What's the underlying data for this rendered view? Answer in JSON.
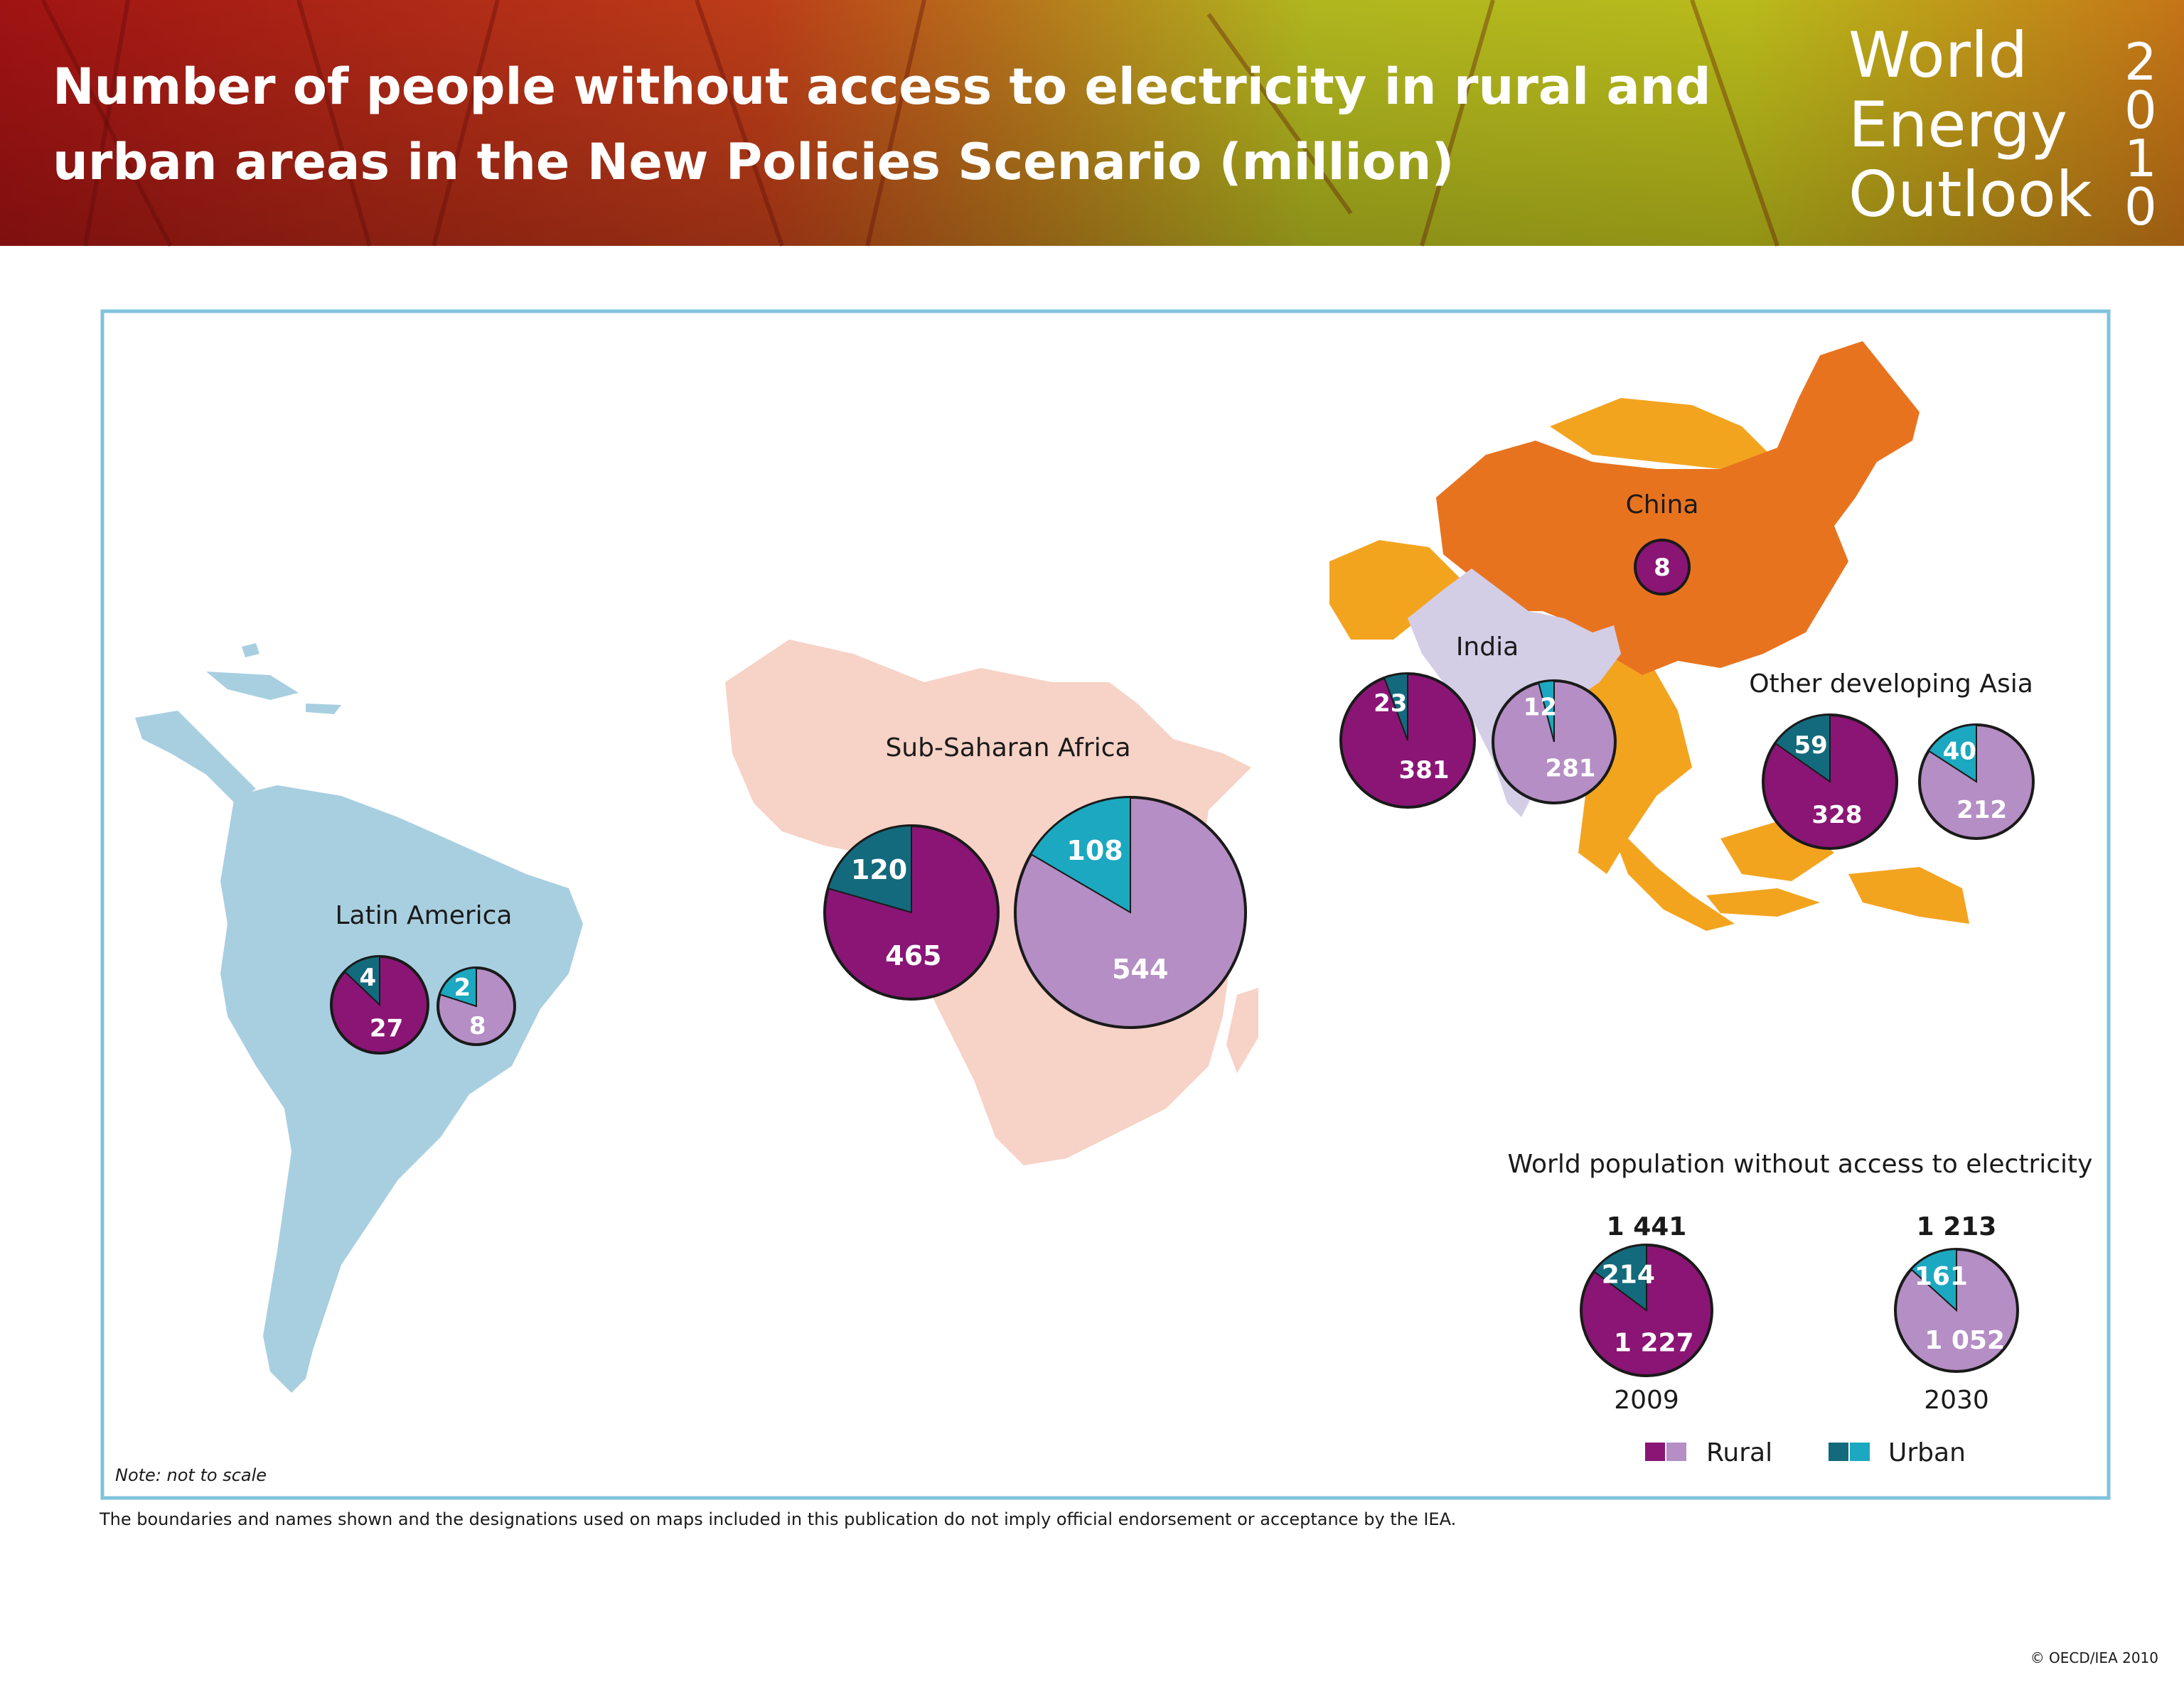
{
  "header": {
    "title_line1": "Number of people without access to electricity in rural and",
    "title_line2": "urban areas in the New Policies Scenario (million)",
    "logo_line1": "World",
    "logo_line2": "Energy",
    "logo_line3": "Outlook",
    "logo_year_digits": [
      "2",
      "0",
      "1",
      "0"
    ]
  },
  "colors": {
    "rural_2009": "#8a1575",
    "rural_2030": "#b48ec4",
    "urban_2009": "#136a7c",
    "urban_2030": "#1ca8c0",
    "latin_america": "#a8cfe0",
    "africa": "#f7d2c6",
    "china": "#e8731f",
    "india": "#d3cde6",
    "other_asia": "#f3a41f"
  },
  "regions": [
    {
      "id": "latin-america",
      "name": "Latin America",
      "pies": [
        {
          "year": "2009",
          "rural": 27,
          "urban": 4
        },
        {
          "year": "2030",
          "rural": 8,
          "urban": 2
        }
      ]
    },
    {
      "id": "sub-saharan-africa",
      "name": "Sub-Saharan Africa",
      "pies": [
        {
          "year": "2009",
          "rural": 465,
          "urban": 120
        },
        {
          "year": "2030",
          "rural": 544,
          "urban": 108
        }
      ]
    },
    {
      "id": "china",
      "name": "China",
      "pies": [
        {
          "year": "2009",
          "rural": 8,
          "urban": 0
        }
      ]
    },
    {
      "id": "india",
      "name": "India",
      "pies": [
        {
          "year": "2009",
          "rural": 381,
          "urban": 23
        },
        {
          "year": "2030",
          "rural": 281,
          "urban": 12
        }
      ]
    },
    {
      "id": "other-developing-asia",
      "name": "Other developing Asia",
      "pies": [
        {
          "year": "2009",
          "rural": 328,
          "urban": 59
        },
        {
          "year": "2030",
          "rural": 212,
          "urban": 40
        }
      ]
    }
  ],
  "world": {
    "title": "World population without access to electricity",
    "pies": [
      {
        "year": "2009",
        "total": "1 441",
        "rural": 1227,
        "rural_label": "1 227",
        "urban": 214
      },
      {
        "year": "2030",
        "total": "1 213",
        "rural": 1052,
        "rural_label": "1 052",
        "urban": 161
      }
    ]
  },
  "legend": {
    "rural": "Rural",
    "urban": "Urban"
  },
  "note": "Note: not to scale",
  "disclaimer": "The boundaries and names shown and the designations used on maps included in this publication do not imply official endorsement or acceptance by the IEA.",
  "copyright": "© OECD/IEA 2010"
}
